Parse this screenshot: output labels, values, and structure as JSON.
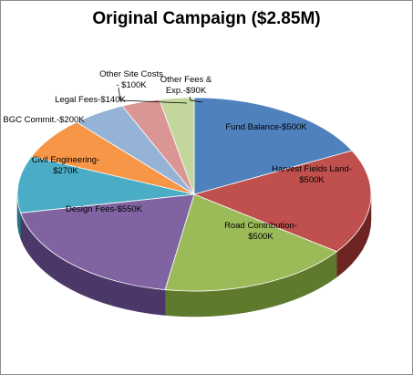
{
  "chart_data": {
    "type": "pie",
    "title": "Original Campaign ($2.85M)",
    "slices": [
      {
        "label": "Fund Balance-$500K",
        "value": 500,
        "color": "#4f81bd",
        "side": "#2f4f76"
      },
      {
        "label": "Harvest Fields Land-$500K",
        "value": 500,
        "color": "#c0504d",
        "side": "#6e2422"
      },
      {
        "label": "Road Contribution-$500K",
        "value": 500,
        "color": "#9bbb59",
        "side": "#5e7a2c"
      },
      {
        "label": "Design Fees-$550K",
        "value": 550,
        "color": "#8064a2",
        "side": "#4c3868"
      },
      {
        "label": "Civil Engineering-$270K",
        "value": 270,
        "color": "#4bacc6",
        "side": "#2a6f82"
      },
      {
        "label": "BGC Commit.-$200K",
        "value": 200,
        "color": "#f79646",
        "side": "#a85a1c"
      },
      {
        "label": "Legal Fees-$140K",
        "value": 140,
        "color": "#95b3d7",
        "side": "#5e7ea5"
      },
      {
        "label": "Other Site Costs - $100K",
        "value": 100,
        "color": "#d99694",
        "side": "#a0605e"
      },
      {
        "label": "Other Fees & Exp.-$90K",
        "value": 90,
        "color": "#c3d69b",
        "side": "#8ea064"
      }
    ],
    "label_lines": [
      [
        "Fund Balance-$500K"
      ],
      [
        "Harvest Fields Land-",
        "$500K"
      ],
      [
        "Road Contribution-",
        "$500K"
      ],
      [
        "Design Fees-$550K"
      ],
      [
        "Civil Engineering-",
        "$270K"
      ],
      [
        "BGC Commit.-$200K"
      ],
      [
        "Legal Fees-$140K"
      ],
      [
        "Other Site Costs",
        "- $100K"
      ],
      [
        "Other Fees &",
        "Exp.-$90K"
      ]
    ],
    "legend": "none",
    "grid": false
  }
}
